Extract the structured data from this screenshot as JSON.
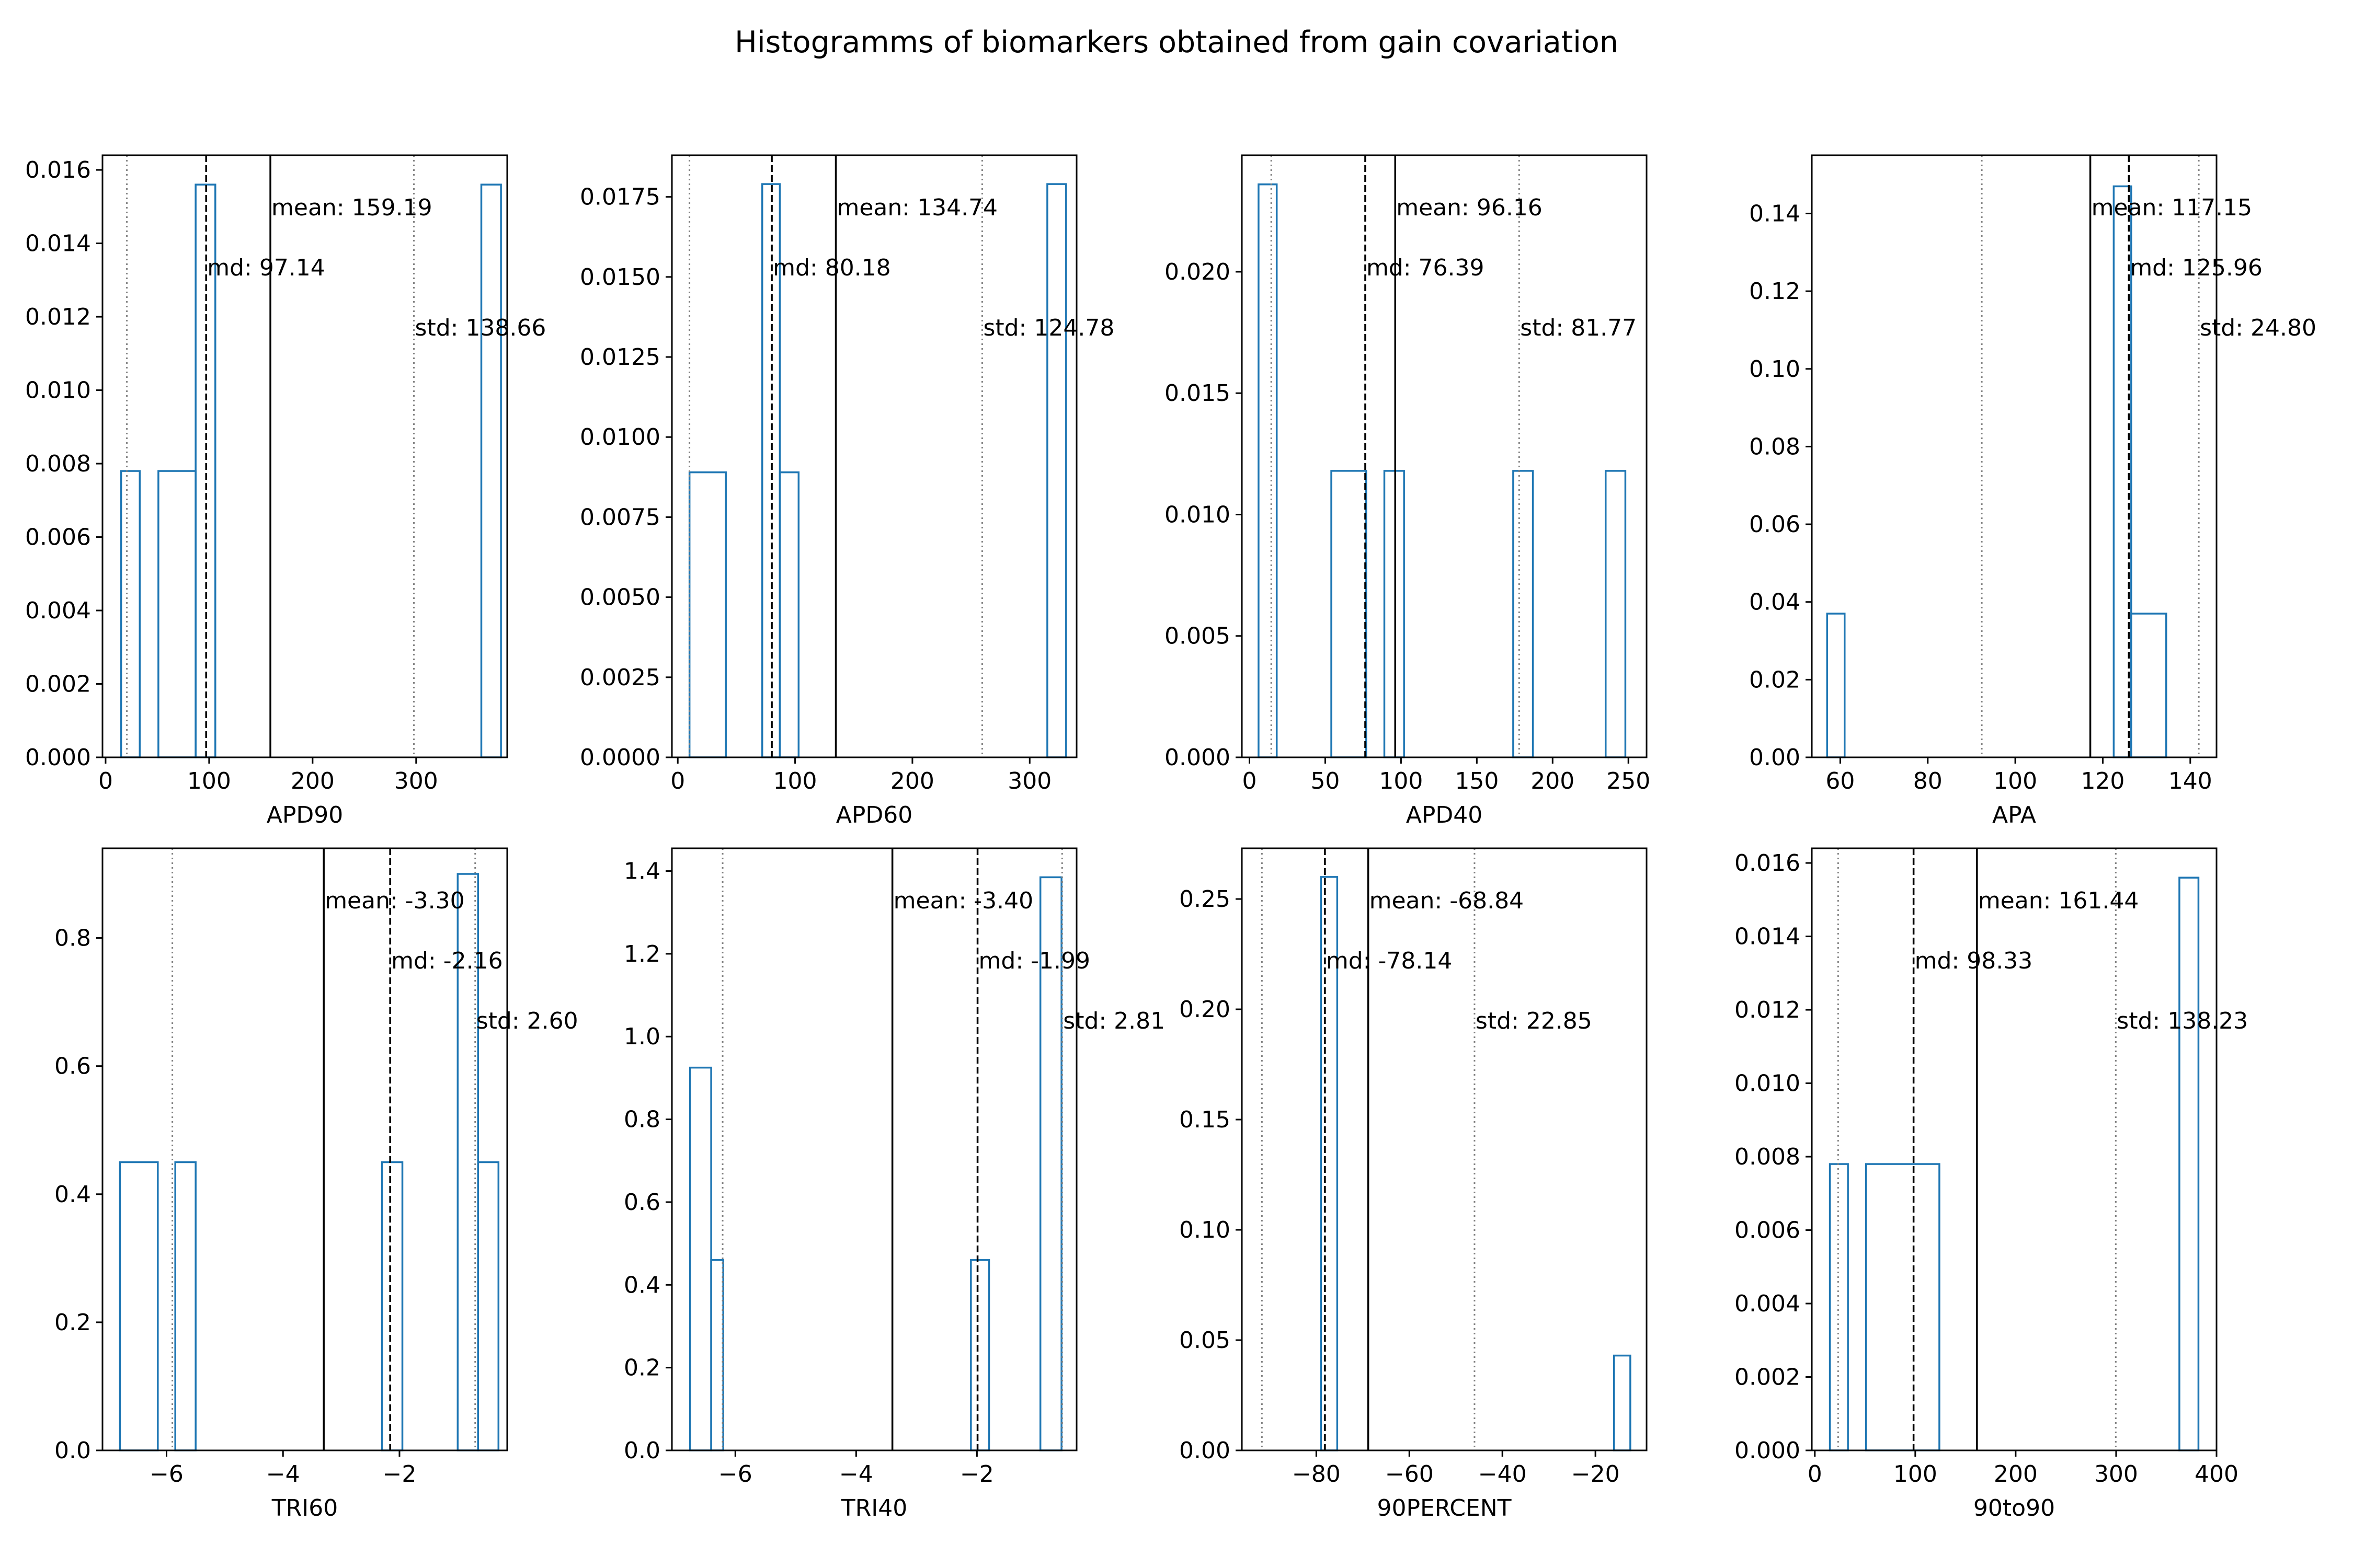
{
  "figure": {
    "title": "Histogramms of biomarkers obtained from gain covariation"
  },
  "colors": {
    "histogram": "#1f77b4",
    "mean_line": "#000000",
    "median_line": "#000000",
    "std_line": "#808080",
    "axes": "#000000"
  },
  "chart_data": [
    {
      "type": "histogram",
      "xlabel": "APD90",
      "xlim": [
        -3,
        388
      ],
      "ylim": [
        0,
        0.0164
      ],
      "xticks": [
        0,
        100,
        200,
        300
      ],
      "xticklabels": [
        "0",
        "100",
        "200",
        "300"
      ],
      "yticks": [
        0,
        0.002,
        0.004,
        0.006,
        0.008,
        0.01,
        0.012,
        0.014,
        0.016
      ],
      "yticklabels": [
        "0.000",
        "0.002",
        "0.004",
        "0.006",
        "0.008",
        "0.010",
        "0.012",
        "0.014",
        "0.016"
      ],
      "bins": [
        [
          15,
          33,
          0.0078
        ],
        [
          51,
          87,
          0.0078
        ],
        [
          87,
          106,
          0.0156
        ],
        [
          363,
          382,
          0.0156
        ]
      ],
      "mean": 159.19,
      "median": 97.14,
      "std_lines": [
        20.53,
        297.85
      ],
      "annotations": {
        "mean": "mean: 159.19",
        "median": "md: 97.14",
        "std": "std: 138.66"
      }
    },
    {
      "type": "histogram",
      "xlabel": "APD60",
      "xlim": [
        -5,
        340
      ],
      "ylim": [
        0,
        0.0188
      ],
      "xticks": [
        0,
        100,
        200,
        300
      ],
      "xticklabels": [
        "0",
        "100",
        "200",
        "300"
      ],
      "yticks": [
        0,
        0.0025,
        0.005,
        0.0075,
        0.01,
        0.0125,
        0.015,
        0.0175
      ],
      "yticklabels": [
        "0.0000",
        "0.0025",
        "0.0050",
        "0.0075",
        "0.0100",
        "0.0125",
        "0.0150",
        "0.0175"
      ],
      "bins": [
        [
          10,
          41,
          0.0089
        ],
        [
          72,
          87,
          0.0179
        ],
        [
          87,
          103,
          0.0089
        ],
        [
          315,
          331,
          0.0179
        ]
      ],
      "mean": 134.74,
      "median": 80.18,
      "std_lines": [
        9.96,
        259.52
      ],
      "annotations": {
        "mean": "mean: 134.74",
        "median": "md: 80.18",
        "std": "std: 124.78"
      }
    },
    {
      "type": "histogram",
      "xlabel": "APD40",
      "xlim": [
        -5,
        262
      ],
      "ylim": [
        0,
        0.0248
      ],
      "xticks": [
        0,
        50,
        100,
        150,
        200,
        250
      ],
      "xticklabels": [
        "0",
        "50",
        "100",
        "150",
        "200",
        "250"
      ],
      "yticks": [
        0,
        0.005,
        0.01,
        0.015,
        0.02
      ],
      "yticklabels": [
        "0.000",
        "0.005",
        "0.010",
        "0.015",
        "0.020"
      ],
      "bins": [
        [
          6,
          18,
          0.0236
        ],
        [
          54,
          77,
          0.0118
        ],
        [
          89,
          102,
          0.0118
        ],
        [
          174,
          187,
          0.0118
        ],
        [
          235,
          248,
          0.0118
        ]
      ],
      "mean": 96.16,
      "median": 76.39,
      "std_lines": [
        14.39,
        177.93
      ],
      "annotations": {
        "mean": "mean: 96.16",
        "median": "md: 76.39",
        "std": "std: 81.77"
      }
    },
    {
      "type": "histogram",
      "xlabel": "APA",
      "xlim": [
        53.5,
        146
      ],
      "ylim": [
        0,
        0.155
      ],
      "xticks": [
        60,
        80,
        100,
        120,
        140
      ],
      "xticklabels": [
        "60",
        "80",
        "100",
        "120",
        "140"
      ],
      "yticks": [
        0,
        0.02,
        0.04,
        0.06,
        0.08,
        0.1,
        0.12,
        0.14
      ],
      "yticklabels": [
        "0.00",
        "0.02",
        "0.04",
        "0.06",
        "0.08",
        "0.10",
        "0.12",
        "0.14"
      ],
      "bins": [
        [
          57,
          61,
          0.037
        ],
        [
          122.5,
          126.5,
          0.147
        ],
        [
          126.5,
          134.5,
          0.037
        ]
      ],
      "mean": 117.15,
      "median": 125.96,
      "std_lines": [
        92.35,
        141.95
      ],
      "annotations": {
        "mean": "mean: 117.15",
        "median": "md: 125.96",
        "std": "std: 24.80"
      }
    },
    {
      "type": "histogram",
      "xlabel": "TRI60",
      "xlim": [
        -7.1,
        -0.15
      ],
      "ylim": [
        0,
        0.94
      ],
      "xticks": [
        -6,
        -4,
        -2
      ],
      "xticklabels": [
        "−6",
        "−4",
        "−2"
      ],
      "yticks": [
        0,
        0.2,
        0.4,
        0.6,
        0.8
      ],
      "yticklabels": [
        "0.0",
        "0.2",
        "0.4",
        "0.6",
        "0.8"
      ],
      "bins": [
        [
          -6.8,
          -6.15,
          0.45
        ],
        [
          -5.85,
          -5.5,
          0.45
        ],
        [
          -2.3,
          -1.95,
          0.45
        ],
        [
          -1.0,
          -0.65,
          0.9
        ],
        [
          -0.65,
          -0.3,
          0.45
        ]
      ],
      "mean": -3.3,
      "median": -2.16,
      "std_lines": [
        -5.9,
        -0.7
      ],
      "annotations": {
        "mean": "mean: -3.30",
        "median": "md: -2.16",
        "std": "std: 2.60"
      }
    },
    {
      "type": "histogram",
      "xlabel": "TRI40",
      "xlim": [
        -7.05,
        -0.35
      ],
      "ylim": [
        0,
        1.455
      ],
      "xticks": [
        -6,
        -4,
        -2
      ],
      "xticklabels": [
        "−6",
        "−4",
        "−2"
      ],
      "yticks": [
        0,
        0.2,
        0.4,
        0.6,
        0.8,
        1.0,
        1.2,
        1.4
      ],
      "yticklabels": [
        "0.0",
        "0.2",
        "0.4",
        "0.6",
        "0.8",
        "1.0",
        "1.2",
        "1.4"
      ],
      "bins": [
        [
          -6.75,
          -6.4,
          0.925
        ],
        [
          -6.4,
          -6.2,
          0.46
        ],
        [
          -2.1,
          -1.8,
          0.46
        ],
        [
          -0.95,
          -0.6,
          1.385
        ]
      ],
      "mean": -3.4,
      "median": -1.99,
      "std_lines": [
        -6.21,
        -0.59
      ],
      "annotations": {
        "mean": "mean: -3.40",
        "median": "md: -1.99",
        "std": "std: 2.81"
      }
    },
    {
      "type": "histogram",
      "xlabel": "90PERCENT",
      "xlim": [
        -96,
        -9
      ],
      "ylim": [
        0,
        0.273
      ],
      "xticks": [
        -80,
        -60,
        -40,
        -20
      ],
      "xticklabels": [
        "−80",
        "−60",
        "−40",
        "−20"
      ],
      "yticks": [
        0,
        0.05,
        0.1,
        0.15,
        0.2,
        0.25
      ],
      "yticklabels": [
        "0.00",
        "0.05",
        "0.10",
        "0.15",
        "0.20",
        "0.25"
      ],
      "bins": [
        [
          -79,
          -75.5,
          0.26
        ],
        [
          -16,
          -12.5,
          0.043
        ]
      ],
      "mean": -68.84,
      "median": -78.14,
      "std_lines": [
        -91.69,
        -45.99
      ],
      "annotations": {
        "mean": "mean: -68.84",
        "median": "md: -78.14",
        "std": "std: 22.85"
      }
    },
    {
      "type": "histogram",
      "xlabel": "90to90",
      "xlim": [
        -3,
        400
      ],
      "ylim": [
        0,
        0.0164
      ],
      "xticks": [
        0,
        100,
        200,
        300,
        400
      ],
      "xticklabels": [
        "0",
        "100",
        "200",
        "300",
        "400"
      ],
      "yticks": [
        0,
        0.002,
        0.004,
        0.006,
        0.008,
        0.01,
        0.012,
        0.014,
        0.016
      ],
      "yticklabels": [
        "0.000",
        "0.002",
        "0.004",
        "0.006",
        "0.008",
        "0.010",
        "0.012",
        "0.014",
        "0.016"
      ],
      "bins": [
        [
          15,
          33,
          0.0078
        ],
        [
          51,
          124,
          0.0078
        ],
        [
          363,
          382,
          0.0156
        ]
      ],
      "mean": 161.44,
      "median": 98.33,
      "std_lines": [
        23.21,
        299.67
      ],
      "annotations": {
        "mean": "mean: 161.44",
        "median": "md: 98.33",
        "std": "std: 138.23"
      }
    }
  ]
}
